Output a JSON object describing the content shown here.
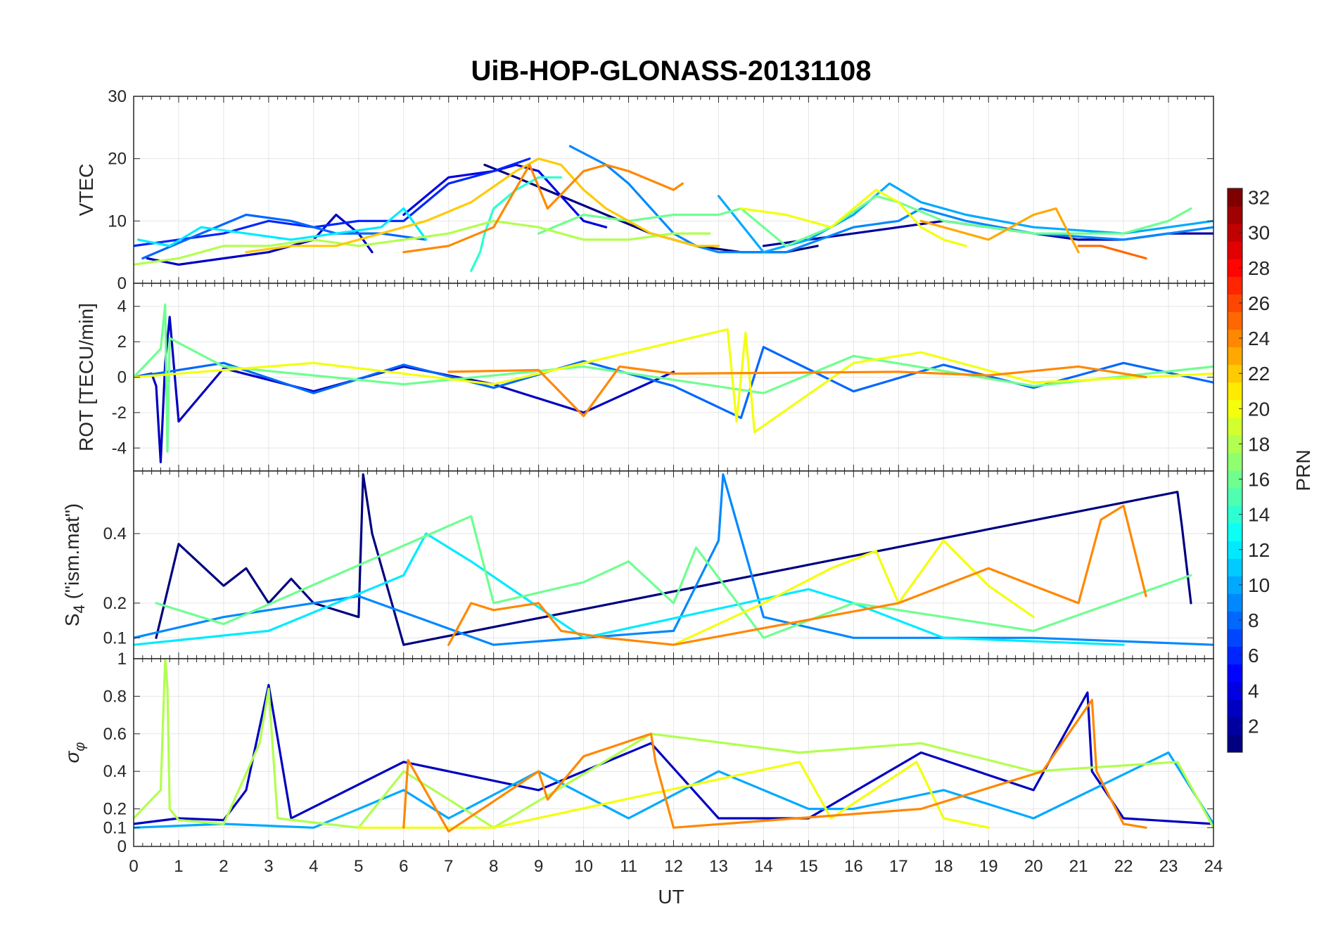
{
  "figure": {
    "title": "UiB-HOP-GLONASS-20131108",
    "xlabel": "UT",
    "colorbar": {
      "label": "PRN",
      "ticks": [
        2,
        4,
        6,
        8,
        10,
        12,
        14,
        16,
        18,
        20,
        22,
        24,
        26,
        28,
        30,
        32
      ],
      "range": [
        1,
        32
      ],
      "colormap": "jet"
    }
  },
  "chart_data": [
    {
      "type": "line",
      "panel": "VTEC",
      "ylabel": "VTEC",
      "xlim": [
        0,
        24
      ],
      "ylim": [
        0,
        30
      ],
      "yticks": [
        0,
        10,
        20,
        30
      ],
      "xticks": [
        0,
        1,
        2,
        3,
        4,
        5,
        6,
        7,
        8,
        9,
        10,
        11,
        12,
        13,
        14,
        15,
        16,
        17,
        18,
        19,
        20,
        21,
        22,
        23,
        24
      ],
      "grid": true,
      "series": [
        {
          "prn": 1,
          "x": [
            7.8,
            8.5,
            9.5,
            10.5,
            11.5,
            12.5,
            13.5,
            14.5,
            15.2
          ],
          "y": [
            19,
            17,
            14,
            11,
            8,
            6,
            5,
            5,
            6
          ]
        },
        {
          "prn": 2,
          "x": [
            14.0,
            15.0,
            16.0,
            17.0,
            18.0,
            19.0,
            20.0,
            21.0,
            22.0,
            23.0,
            24.0
          ],
          "y": [
            6,
            7,
            8,
            9,
            10,
            9,
            8,
            7,
            7,
            8,
            8
          ]
        },
        {
          "prn": 3,
          "x": [
            0.3,
            1.0,
            2.0,
            3.0,
            4.0,
            4.5,
            5.0,
            5.3
          ],
          "y": [
            4,
            3,
            4,
            5,
            7,
            11,
            8,
            5
          ]
        },
        {
          "prn": 4,
          "x": [
            6.0,
            7.0,
            8.0,
            8.5,
            9.0,
            9.5,
            10.0,
            10.5
          ],
          "y": [
            11,
            17,
            18,
            19,
            18,
            14,
            10,
            9
          ]
        },
        {
          "prn": 6,
          "x": [
            0.0,
            1.0,
            2.0,
            3.0,
            4.0,
            5.0,
            6.0,
            7.0,
            8.0,
            8.8
          ],
          "y": [
            6,
            7,
            8,
            10,
            9,
            10,
            10,
            16,
            18,
            20
          ]
        },
        {
          "prn": 8,
          "x": [
            0.2,
            1.5,
            2.5,
            3.5,
            4.5,
            5.5,
            6.5
          ],
          "y": [
            4,
            8,
            11,
            10,
            8,
            8,
            7
          ]
        },
        {
          "prn": 9,
          "x": [
            9.7,
            10.5,
            11.0,
            11.5,
            12.0,
            12.5,
            13.0,
            13.6,
            14.5,
            16.0,
            17.0,
            17.5,
            18.5,
            20.0,
            22.0,
            24.0
          ],
          "y": [
            22,
            19,
            16,
            12,
            8,
            6,
            5,
            5,
            5,
            9,
            10,
            12,
            10,
            8,
            7,
            9
          ]
        },
        {
          "prn": 10,
          "x": [
            13.0,
            14.0,
            15.0,
            16.0,
            16.8,
            17.5,
            18.5,
            20.0,
            22.0,
            24.0
          ],
          "y": [
            14,
            5,
            7,
            11,
            16,
            13,
            11,
            9,
            8,
            10
          ]
        },
        {
          "prn": 12,
          "x": [
            0.1,
            0.8,
            1.5,
            2.5,
            3.5,
            4.5,
            5.5,
            6.0,
            6.5
          ],
          "y": [
            7,
            6,
            9,
            8,
            7,
            8,
            9,
            12,
            7
          ]
        },
        {
          "prn": 14,
          "x": [
            7.5,
            7.7,
            7.8,
            8.0,
            8.5,
            9.0,
            9.5
          ],
          "y": [
            2,
            5,
            8,
            12,
            15,
            17,
            17
          ]
        },
        {
          "prn": 16,
          "x": [
            9.0,
            10.0,
            11.0,
            12.0,
            13.0,
            13.5,
            14.5,
            15.5,
            16.5,
            17.0,
            18.0,
            20.0,
            22.0,
            23.0,
            23.5
          ],
          "y": [
            8,
            11,
            10,
            11,
            11,
            12,
            6,
            9,
            14,
            13,
            10,
            8,
            8,
            10,
            12
          ]
        },
        {
          "prn": 18,
          "x": [
            0.0,
            1.0,
            2.0,
            3.0,
            4.0,
            5.0,
            6.0,
            7.0,
            8.0,
            9.0,
            10.0,
            11.0,
            12.0,
            12.8
          ],
          "y": [
            3,
            4,
            6,
            6,
            7,
            6,
            7,
            8,
            10,
            9,
            7,
            7,
            8,
            8
          ]
        },
        {
          "prn": 20,
          "x": [
            13.5,
            14.5,
            15.5,
            16.0,
            16.5,
            17.0,
            17.5,
            18.0,
            18.5
          ],
          "y": [
            12,
            11,
            9,
            12,
            15,
            13,
            9,
            7,
            6
          ]
        },
        {
          "prn": 22,
          "x": [
            2.5,
            3.5,
            4.5,
            5.5,
            6.5,
            7.5,
            8.5,
            9.0,
            9.5,
            10.0,
            10.5,
            11.0,
            11.5,
            12.0,
            12.5,
            13.0
          ],
          "y": [
            5,
            6,
            6,
            8,
            10,
            13,
            18,
            20,
            19,
            15,
            12,
            10,
            8,
            7,
            6,
            6
          ]
        },
        {
          "prn": 23,
          "x": [
            17.5,
            18.0,
            19.0,
            19.5,
            20.0,
            20.5,
            21.0
          ],
          "y": [
            10,
            9,
            7,
            9,
            11,
            12,
            5
          ]
        },
        {
          "prn": 24,
          "x": [
            6.0,
            7.0,
            8.0,
            8.8,
            9.2,
            10.0,
            10.5,
            11.0,
            12.0,
            12.2
          ],
          "y": [
            5,
            6,
            9,
            19,
            12,
            18,
            19,
            18,
            15,
            16
          ]
        },
        {
          "prn": 25,
          "x": [
            21.0,
            21.5,
            22.0,
            22.5
          ],
          "y": [
            6,
            6,
            5,
            4
          ]
        }
      ]
    },
    {
      "type": "line",
      "panel": "ROT",
      "ylabel": "ROT [TECU/min]",
      "xlim": [
        0,
        24
      ],
      "ylim": [
        -5.3,
        5.3
      ],
      "yticks": [
        -4,
        -2,
        0,
        2,
        4
      ],
      "grid": true,
      "series": [
        {
          "prn": 3,
          "x": [
            0.0,
            0.4,
            0.5,
            0.6,
            0.7,
            0.8,
            1.0,
            2.0,
            4.0,
            6.0,
            8.0,
            10.0,
            12.0
          ],
          "y": [
            0,
            0.2,
            -0.5,
            -4.8,
            0.8,
            3.4,
            -2.5,
            0.5,
            -0.8,
            0.6,
            -0.4,
            -2.0,
            0.3
          ]
        },
        {
          "prn": 8,
          "x": [
            0.0,
            2.0,
            4.0,
            6.0,
            8.0,
            10.0,
            12.0,
            13.5,
            14.0,
            16.0,
            18.0,
            20.0,
            22.0,
            24.0
          ],
          "y": [
            0,
            0.8,
            -0.9,
            0.7,
            -0.6,
            0.9,
            -0.5,
            -2.3,
            1.7,
            -0.8,
            0.7,
            -0.6,
            0.8,
            -0.3
          ]
        },
        {
          "prn": 16,
          "x": [
            0.0,
            0.6,
            0.7,
            0.75,
            0.8,
            2.0,
            6.0,
            10.0,
            14.0,
            16.0,
            20.0,
            24.0
          ],
          "y": [
            0,
            1.6,
            4.1,
            -4.2,
            2.2,
            0.6,
            -0.4,
            0.6,
            -0.9,
            1.2,
            -0.5,
            0.6
          ]
        },
        {
          "prn": 20,
          "x": [
            0.0,
            4.0,
            8.0,
            13.2,
            13.4,
            13.6,
            13.8,
            16.0,
            17.5,
            20.0,
            24.0
          ],
          "y": [
            0,
            0.8,
            -0.4,
            2.7,
            -2.5,
            2.5,
            -3.1,
            0.8,
            1.4,
            -0.3,
            0.2
          ]
        },
        {
          "prn": 24,
          "x": [
            7.0,
            9.0,
            10.0,
            10.8,
            12.0,
            17.0,
            19.0,
            21.0,
            22.5
          ],
          "y": [
            0.3,
            0.4,
            -2.2,
            0.6,
            0.2,
            0.3,
            0.1,
            0.6,
            0.0
          ]
        }
      ]
    },
    {
      "type": "line",
      "panel": "S4",
      "ylabel": "S4 (\"ism.mat\")",
      "xlim": [
        0,
        24
      ],
      "ylim": [
        0.04,
        0.58
      ],
      "yticks": [
        0.1,
        0.2,
        0.4
      ],
      "grid": true,
      "series": [
        {
          "prn": 1,
          "x": [
            0.5,
            1.0,
            2.0,
            2.5,
            3.0,
            3.5,
            4.0,
            5.0,
            5.1,
            5.3,
            6.0,
            23.2,
            23.3,
            23.5
          ],
          "y": [
            0.1,
            0.37,
            0.25,
            0.3,
            0.2,
            0.27,
            0.2,
            0.16,
            0.57,
            0.4,
            0.08,
            0.52,
            0.42,
            0.2
          ]
        },
        {
          "prn": 9,
          "x": [
            0.0,
            2.0,
            5.0,
            8.0,
            12.0,
            13.0,
            13.1,
            14.0,
            16.0,
            20.0,
            24.0
          ],
          "y": [
            0.1,
            0.16,
            0.22,
            0.08,
            0.12,
            0.38,
            0.57,
            0.16,
            0.1,
            0.1,
            0.08
          ]
        },
        {
          "prn": 12,
          "x": [
            0.0,
            3.0,
            6.0,
            6.5,
            7.5,
            10.0,
            15.0,
            16.0,
            18.0,
            22.0
          ],
          "y": [
            0.08,
            0.12,
            0.28,
            0.4,
            0.32,
            0.1,
            0.24,
            0.2,
            0.1,
            0.08
          ]
        },
        {
          "prn": 16,
          "x": [
            0.5,
            2.0,
            7.5,
            8.0,
            10.0,
            11.0,
            12.0,
            12.5,
            14.0,
            16.0,
            20.0,
            23.5
          ],
          "y": [
            0.2,
            0.14,
            0.45,
            0.2,
            0.26,
            0.32,
            0.2,
            0.36,
            0.1,
            0.2,
            0.12,
            0.28
          ]
        },
        {
          "prn": 20,
          "x": [
            12.0,
            14.0,
            15.5,
            16.5,
            17.0,
            18.0,
            19.0,
            20.0
          ],
          "y": [
            0.08,
            0.2,
            0.3,
            0.35,
            0.2,
            0.38,
            0.25,
            0.16
          ]
        },
        {
          "prn": 24,
          "x": [
            7.0,
            7.5,
            8.0,
            9.0,
            9.5,
            10.5,
            12.0,
            17.0,
            19.0,
            20.0,
            21.0,
            21.5,
            22.0,
            22.5
          ],
          "y": [
            0.08,
            0.2,
            0.18,
            0.2,
            0.12,
            0.1,
            0.08,
            0.2,
            0.3,
            0.25,
            0.2,
            0.44,
            0.48,
            0.22
          ]
        }
      ]
    },
    {
      "type": "line",
      "panel": "sigma_phi",
      "ylabel": "σφ",
      "xlim": [
        0,
        24
      ],
      "ylim": [
        0,
        1
      ],
      "yticks": [
        0,
        0.1,
        0.2,
        0.4,
        0.6,
        0.8,
        1
      ],
      "grid": true,
      "series": [
        {
          "prn": 3,
          "x": [
            0.0,
            1.0,
            2.0,
            2.5,
            3.0,
            3.5,
            6.0,
            9.0,
            11.5,
            13.0,
            15.0,
            17.5,
            20.0,
            21.2,
            21.3,
            22.0,
            24.0
          ],
          "y": [
            0.12,
            0.15,
            0.14,
            0.3,
            0.86,
            0.15,
            0.45,
            0.3,
            0.55,
            0.15,
            0.15,
            0.5,
            0.3,
            0.82,
            0.4,
            0.15,
            0.12
          ]
        },
        {
          "prn": 10,
          "x": [
            0.0,
            2.0,
            4.0,
            6.0,
            7.0,
            9.0,
            11.0,
            13.0,
            15.0,
            16.0,
            18.0,
            20.0,
            23.0,
            24.0
          ],
          "y": [
            0.1,
            0.12,
            0.1,
            0.3,
            0.15,
            0.4,
            0.15,
            0.4,
            0.2,
            0.2,
            0.3,
            0.15,
            0.5,
            0.12
          ]
        },
        {
          "prn": 18,
          "x": [
            0.0,
            0.6,
            0.7,
            0.75,
            0.8,
            1.0,
            2.0,
            2.8,
            3.0,
            3.2,
            5.0,
            6.0,
            8.0,
            11.5,
            14.8,
            17.5,
            20.0,
            23.2,
            24.0
          ],
          "y": [
            0.15,
            0.3,
            1.0,
            0.85,
            0.2,
            0.14,
            0.12,
            0.55,
            0.84,
            0.15,
            0.1,
            0.4,
            0.1,
            0.6,
            0.5,
            0.55,
            0.4,
            0.45,
            0.1
          ]
        },
        {
          "prn": 20,
          "x": [
            5.0,
            8.0,
            14.8,
            15.5,
            17.4,
            17.6,
            18.0,
            19.0
          ],
          "y": [
            0.1,
            0.1,
            0.45,
            0.15,
            0.45,
            0.35,
            0.15,
            0.1
          ]
        },
        {
          "prn": 24,
          "x": [
            6.0,
            6.1,
            7.0,
            9.0,
            9.2,
            10.0,
            11.5,
            11.6,
            12.0,
            17.5,
            20.2,
            21.3,
            21.4,
            22.0,
            22.5
          ],
          "y": [
            0.1,
            0.46,
            0.08,
            0.4,
            0.25,
            0.48,
            0.6,
            0.45,
            0.1,
            0.2,
            0.4,
            0.78,
            0.4,
            0.12,
            0.1
          ]
        }
      ]
    }
  ]
}
